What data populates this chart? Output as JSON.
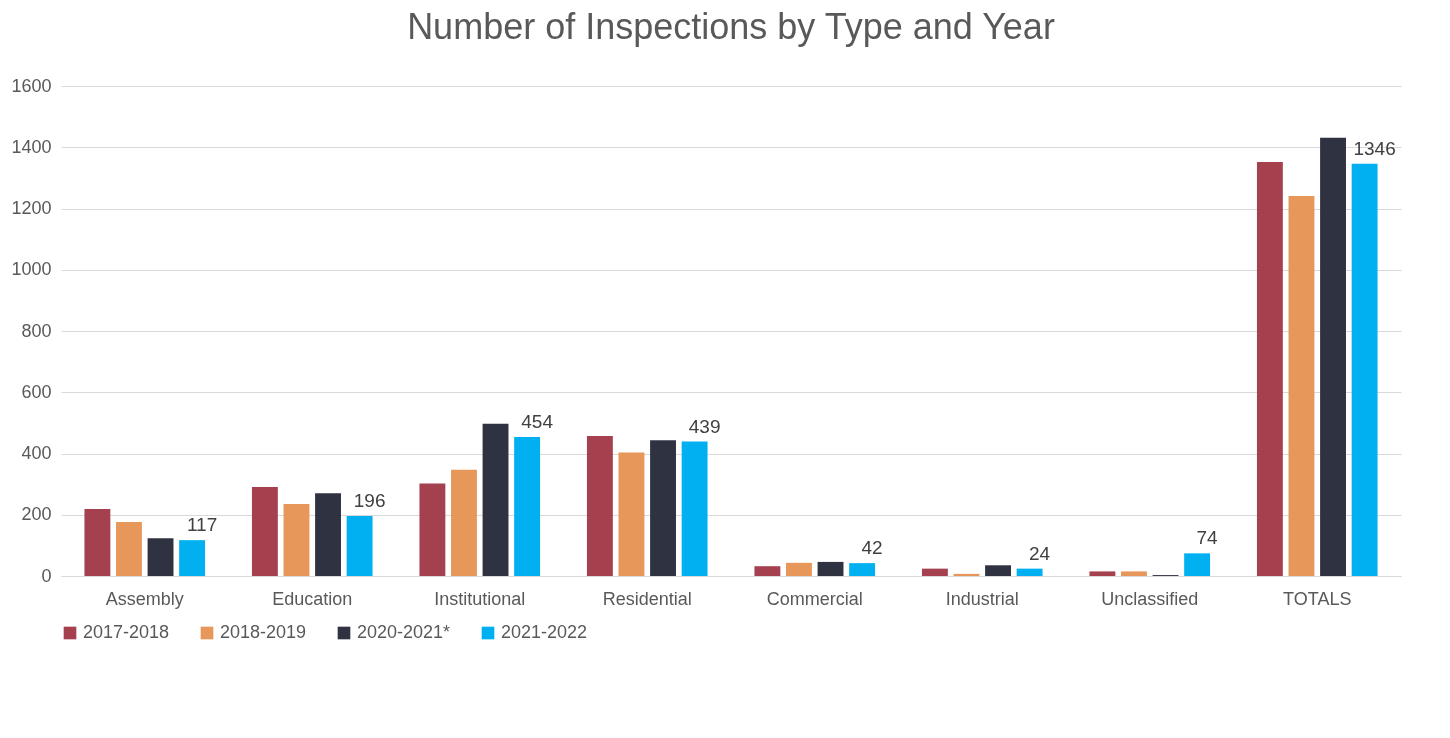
{
  "chart_data": {
    "type": "bar",
    "title": "Number of Inspections by Type and Year",
    "categories": [
      "Assembly",
      "Education",
      "Institutional",
      "Residential",
      "Commercial",
      "Industrial",
      "Unclassified",
      "TOTALS"
    ],
    "series": [
      {
        "name": "2017-2018",
        "color": "#a5404f",
        "values": [
          219,
          291,
          302,
          457,
          32,
          24,
          15,
          1352
        ]
      },
      {
        "name": "2018-2019",
        "color": "#e8975a",
        "values": [
          176,
          235,
          347,
          403,
          43,
          7,
          15,
          1241
        ]
      },
      {
        "name": "2020-2021*",
        "color": "#2f3241",
        "values": [
          123,
          270,
          497,
          443,
          46,
          35,
          3,
          1431
        ]
      },
      {
        "name": "2021-2022",
        "color": "#00b0f0",
        "values": [
          117,
          196,
          454,
          439,
          42,
          24,
          74,
          1346
        ],
        "value_labels": [
          "117",
          "196",
          "454",
          "439",
          "42",
          "24",
          "74",
          "1346"
        ]
      }
    ],
    "ylim": [
      0,
      1600
    ],
    "yticks": [
      0,
      200,
      400,
      600,
      800,
      1000,
      1200,
      1400,
      1600
    ],
    "grid": "y",
    "legend": "bottom"
  }
}
